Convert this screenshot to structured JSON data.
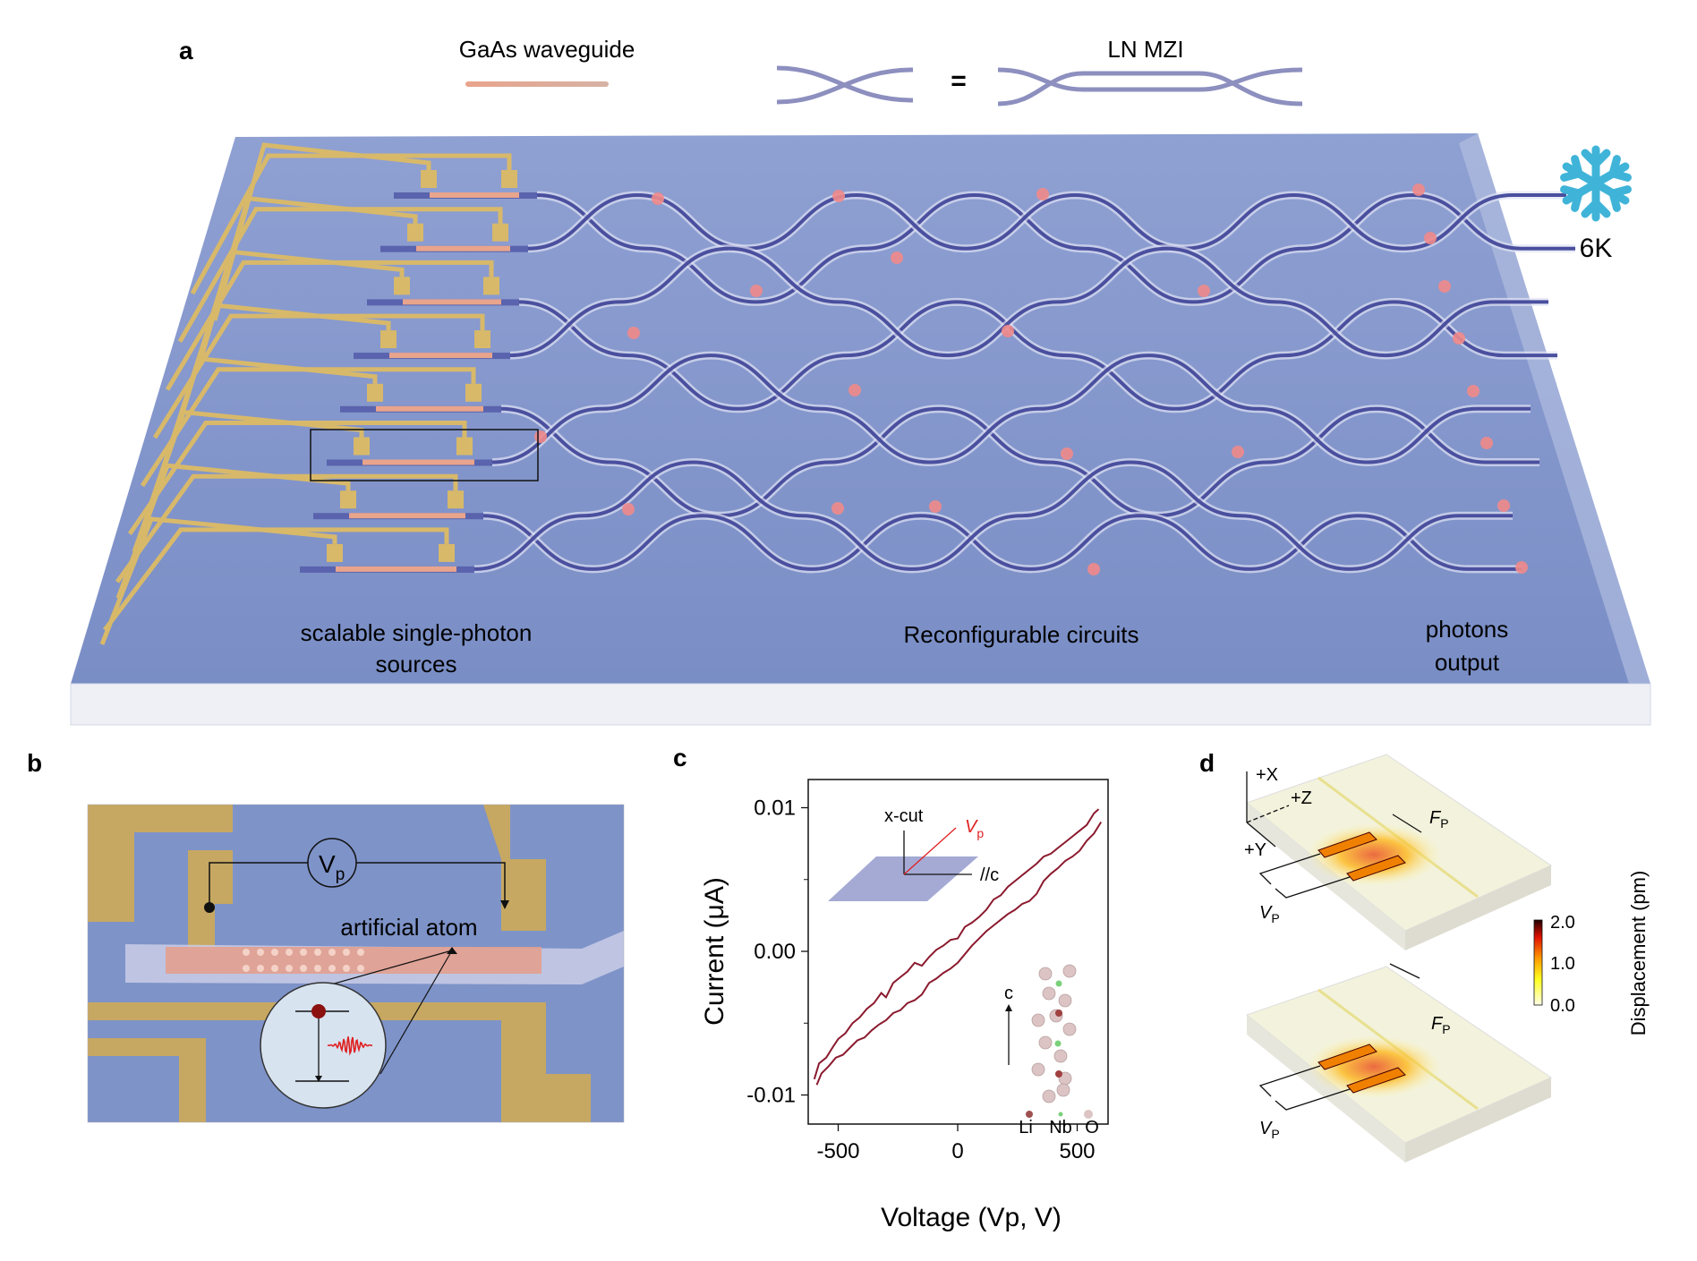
{
  "panel_a": {
    "label": "a",
    "legend_gaas": "GaAs waveguide",
    "legend_lnmzi": "LN MZI",
    "legend_equals": "=",
    "temperature": "6K",
    "temperature_icon": "snowflake-icon",
    "label_sources_line1": "scalable single-photon",
    "label_sources_line2": "sources",
    "label_circuits": "Reconfigurable circuits",
    "label_output_line1": "photons",
    "label_output_line2": "output",
    "colors": {
      "chip": "#7f93c9",
      "waveguide": "#4a4f9e",
      "gold": "#d8b96a",
      "phase_shifter": "#f08a8a",
      "snowflake": "#3fb4d8"
    }
  },
  "panel_b": {
    "label": "b",
    "source_label": "V",
    "source_sub": "p",
    "annotation": "artificial atom"
  },
  "panel_c": {
    "label": "c",
    "inset_xcut": "x-cut",
    "inset_vp": "V",
    "inset_vp_sub": "p",
    "inset_c_axis": "//c",
    "crystal_c": "c",
    "atoms": [
      "Li",
      "Nb",
      "O"
    ],
    "chart_data": {
      "type": "line",
      "xlabel": "Voltage (Vp, V)",
      "ylabel": "Current (μA)",
      "xlim": [
        -620,
        630
      ],
      "ylim": [
        -0.0115,
        0.0119
      ],
      "xticks": [
        "-500",
        "0",
        "500"
      ],
      "xtick_values": [
        -500,
        0,
        500
      ],
      "yticks": [
        "0.01",
        "0.00",
        "-0.01"
      ],
      "ytick_values": [
        0.01,
        0.0,
        -0.01
      ],
      "color": "#8b1a2e",
      "series": [
        {
          "x": [
            -600,
            -580,
            -550,
            -520,
            -500,
            -470,
            -440,
            -410,
            -380,
            -350,
            -320,
            -300,
            -270,
            -240,
            -210,
            -180,
            -150,
            -120,
            -90,
            -60,
            -30,
            0,
            30,
            60,
            90,
            120,
            150,
            180,
            210,
            240,
            270,
            300,
            330,
            360,
            390,
            420,
            450,
            480,
            510,
            540,
            570,
            590
          ],
          "y": [
            -0.0089,
            -0.0078,
            -0.0074,
            -0.0066,
            -0.0061,
            -0.0057,
            -0.005,
            -0.0046,
            -0.004,
            -0.0036,
            -0.0029,
            -0.0032,
            -0.0022,
            -0.0018,
            -0.0014,
            -0.0008,
            -0.001,
            -0.0004,
            0.0001,
            0.0004,
            0.0008,
            0.0009,
            0.0017,
            0.002,
            0.0024,
            0.0029,
            0.0036,
            0.0039,
            0.0045,
            0.0049,
            0.0053,
            0.0057,
            0.0061,
            0.0066,
            0.0068,
            0.0072,
            0.0076,
            0.008,
            0.0084,
            0.0088,
            0.0096,
            0.0099
          ]
        },
        {
          "x": [
            -590,
            -570,
            -540,
            -510,
            -480,
            -450,
            -420,
            -390,
            -360,
            -330,
            -300,
            -270,
            -240,
            -210,
            -180,
            -150,
            -120,
            -90,
            -60,
            -30,
            0,
            30,
            60,
            90,
            120,
            150,
            180,
            210,
            240,
            270,
            300,
            330,
            360,
            390,
            420,
            450,
            480,
            510,
            540,
            570,
            600
          ],
          "y": [
            -0.0093,
            -0.0085,
            -0.008,
            -0.0074,
            -0.0072,
            -0.0067,
            -0.0062,
            -0.006,
            -0.0055,
            -0.0051,
            -0.0048,
            -0.0043,
            -0.0041,
            -0.0036,
            -0.0034,
            -0.003,
            -0.0022,
            -0.0019,
            -0.0015,
            -0.0012,
            -0.0008,
            -0.0002,
            0.0004,
            0.0009,
            0.0014,
            0.0018,
            0.0022,
            0.0026,
            0.0029,
            0.0033,
            0.0035,
            0.004,
            0.0049,
            0.0054,
            0.0058,
            0.0063,
            0.0066,
            0.007,
            0.0077,
            0.0082,
            0.009
          ]
        }
      ]
    }
  },
  "panel_d": {
    "label": "d",
    "axis_x": "+X",
    "axis_y": "+Y",
    "axis_z": "+Z",
    "force": "F",
    "force_sub": "P",
    "voltage": "V",
    "voltage_sub": "P",
    "colorbar_title": "Displacement (pm)",
    "colorbar_ticks": [
      "2.0",
      "1.0",
      "0.0"
    ],
    "colorbar_range": [
      0.0,
      2.0
    ]
  }
}
